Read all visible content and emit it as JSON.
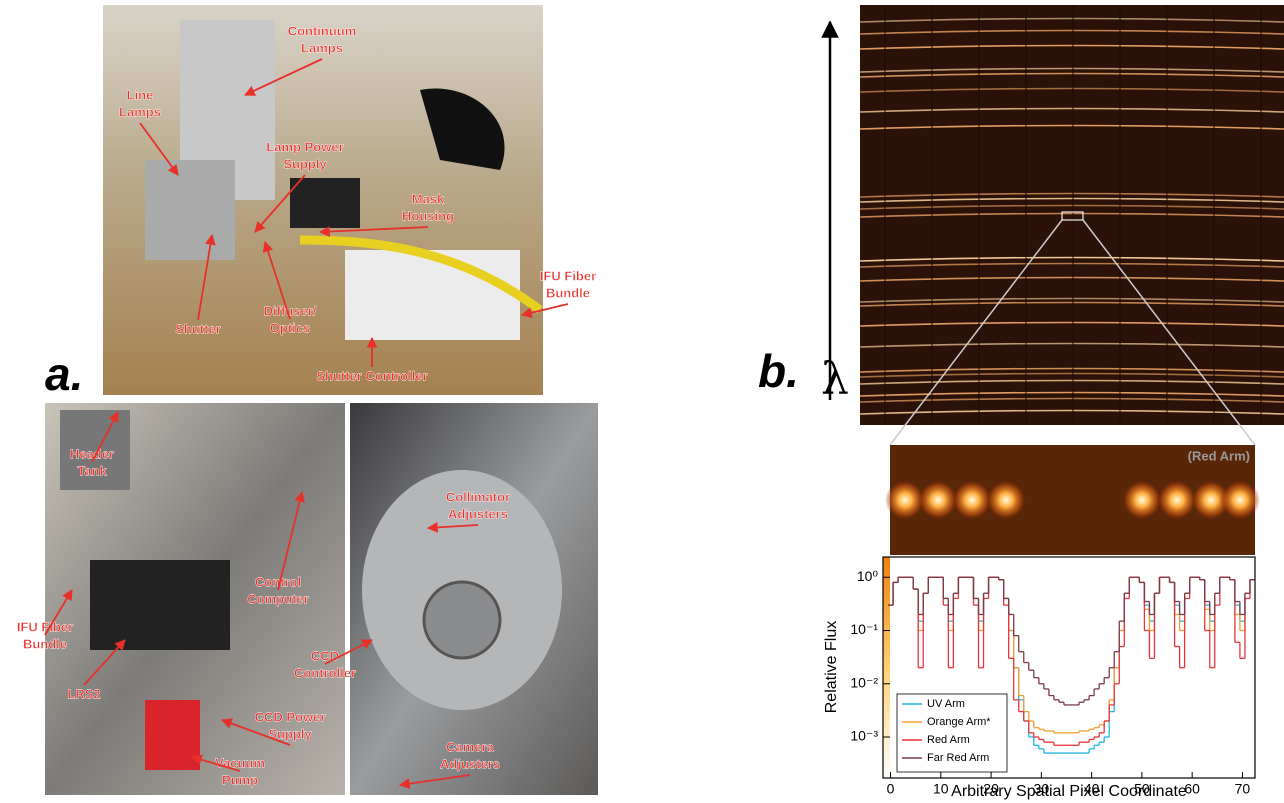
{
  "panel_a": {
    "letter": "a.",
    "photo_top": {
      "labels": [
        {
          "lines": [
            "Continuum",
            "Lamps"
          ]
        },
        {
          "lines": [
            "Line",
            "Lamps"
          ]
        },
        {
          "lines": [
            "Lamp Power",
            "Supply"
          ]
        },
        {
          "lines": [
            "Mask",
            "Housing"
          ]
        },
        {
          "lines": [
            "IFU Fiber",
            "Bundle"
          ]
        },
        {
          "lines": [
            "Shutter"
          ]
        },
        {
          "lines": [
            "Diffuser/",
            "Optics"
          ]
        },
        {
          "lines": [
            "Shutter Controller"
          ]
        }
      ]
    },
    "photo_bottom_left": {
      "labels": [
        {
          "lines": [
            "Header",
            "Tank"
          ]
        },
        {
          "lines": [
            "Control",
            "Computer"
          ]
        },
        {
          "lines": [
            "IFU Fiber",
            "Bundle"
          ]
        },
        {
          "lines": [
            "LRS2"
          ]
        },
        {
          "lines": [
            "CCD Power",
            "Supply"
          ]
        },
        {
          "lines": [
            "Vacuum",
            "Pump"
          ]
        }
      ]
    },
    "photo_bottom_right": {
      "labels": [
        {
          "lines": [
            "Collimator",
            "Adjusters"
          ]
        },
        {
          "lines": [
            "CCD",
            "Controller"
          ]
        },
        {
          "lines": [
            "Camera",
            "Adjusters"
          ]
        }
      ]
    }
  },
  "panel_b": {
    "letter": "b.",
    "axis_symbol": "λ",
    "zoom_label": "(Red Arm)"
  },
  "chart_data": {
    "type": "step",
    "xlabel": "Arbitrary Spatial Pixel Coordinate",
    "ylabel": "Relative Flux",
    "log_y": true,
    "legend": "lower left",
    "xlim": [
      -1.5,
      72.5
    ],
    "ylim": [
      0.00017,
      2.4
    ],
    "xticks": [
      0,
      10,
      20,
      30,
      40,
      50,
      60,
      70
    ],
    "yticks": [
      {
        "value": 0.001,
        "label": "10⁻³"
      },
      {
        "value": 0.01,
        "label": "10⁻²"
      },
      {
        "value": 0.1,
        "label": "10⁻¹"
      },
      {
        "value": 1,
        "label": "10⁰"
      }
    ],
    "x": [
      0,
      1,
      2,
      3,
      4,
      5,
      6,
      7,
      8,
      9,
      10,
      11,
      12,
      13,
      14,
      15,
      16,
      17,
      18,
      19,
      20,
      21,
      22,
      23,
      24,
      25,
      26,
      27,
      28,
      29,
      30,
      31,
      32,
      33,
      34,
      35,
      36,
      37,
      38,
      39,
      40,
      41,
      42,
      43,
      44,
      45,
      46,
      47,
      48,
      49,
      50,
      51,
      52,
      53,
      54,
      55,
      56,
      57,
      58,
      59,
      60,
      61,
      62,
      63,
      64,
      65,
      66,
      67,
      68,
      69,
      70,
      71,
      72
    ],
    "series": [
      {
        "name": "UV Arm",
        "color": "#1fb4e0",
        "values": [
          0.3,
          0.8,
          1,
          1,
          1,
          0.6,
          0.15,
          0.5,
          1,
          1,
          1,
          0.4,
          0.15,
          0.5,
          1,
          1,
          1,
          0.4,
          0.15,
          0.5,
          1,
          1,
          0.9,
          0.4,
          0.1,
          0.02,
          0.005,
          0.002,
          0.001,
          0.0007,
          0.0006,
          0.0005,
          0.0005,
          0.0005,
          0.0005,
          0.0005,
          0.0005,
          0.0005,
          0.0005,
          0.0005,
          0.0006,
          0.0007,
          0.0008,
          0.001,
          0.003,
          0.02,
          0.1,
          0.5,
          1,
          1,
          0.8,
          0.3,
          0.15,
          0.5,
          1,
          1,
          0.8,
          0.3,
          0.15,
          0.5,
          1,
          1,
          0.9,
          0.3,
          0.15,
          0.5,
          1,
          1,
          0.9,
          0.3,
          0.15,
          0.5,
          0.9
        ]
      },
      {
        "name": "Orange Arm*",
        "color": "#f0a030",
        "values": [
          0.3,
          0.8,
          1,
          1,
          1,
          0.6,
          0.1,
          0.5,
          1,
          1,
          1,
          0.4,
          0.1,
          0.5,
          1,
          1,
          1,
          0.4,
          0.1,
          0.5,
          1,
          1,
          0.9,
          0.4,
          0.1,
          0.02,
          0.006,
          0.003,
          0.002,
          0.0015,
          0.0014,
          0.0013,
          0.0013,
          0.0012,
          0.0012,
          0.0012,
          0.0012,
          0.0012,
          0.0013,
          0.0013,
          0.0014,
          0.0015,
          0.0017,
          0.002,
          0.005,
          0.02,
          0.1,
          0.5,
          1,
          1,
          0.8,
          0.25,
          0.1,
          0.5,
          1,
          1,
          0.8,
          0.2,
          0.1,
          0.5,
          1,
          1,
          0.9,
          0.25,
          0.1,
          0.5,
          1,
          1,
          0.9,
          0.2,
          0.1,
          0.5,
          0.9
        ]
      },
      {
        "name": "Red Arm",
        "color": "#e8353a",
        "values": [
          0.3,
          0.8,
          1,
          1,
          1,
          0.6,
          0.02,
          0.5,
          1,
          1,
          1,
          0.3,
          0.02,
          0.4,
          1,
          1,
          1,
          0.3,
          0.02,
          0.4,
          1,
          1,
          0.9,
          0.3,
          0.03,
          0.005,
          0.003,
          0.002,
          0.0012,
          0.001,
          0.0009,
          0.0008,
          0.0008,
          0.0007,
          0.0007,
          0.0007,
          0.0007,
          0.0007,
          0.0008,
          0.0008,
          0.0009,
          0.001,
          0.0012,
          0.002,
          0.004,
          0.01,
          0.05,
          0.4,
          1,
          1,
          0.8,
          0.1,
          0.03,
          0.5,
          1,
          1,
          0.8,
          0.05,
          0.02,
          0.4,
          1,
          1,
          0.9,
          0.1,
          0.02,
          0.3,
          1,
          1,
          0.9,
          0.06,
          0.03,
          0.4,
          0.9
        ]
      },
      {
        "name": "Far Red Arm",
        "color": "#7a3a4a",
        "values": [
          0.3,
          0.8,
          1,
          1,
          1,
          0.6,
          0.2,
          0.5,
          1,
          1,
          1,
          0.4,
          0.2,
          0.5,
          1,
          1,
          1,
          0.4,
          0.2,
          0.5,
          1,
          1,
          0.9,
          0.4,
          0.2,
          0.08,
          0.04,
          0.025,
          0.018,
          0.013,
          0.01,
          0.008,
          0.006,
          0.005,
          0.0045,
          0.004,
          0.004,
          0.004,
          0.0045,
          0.005,
          0.006,
          0.008,
          0.01,
          0.013,
          0.02,
          0.04,
          0.15,
          0.5,
          1,
          1,
          0.8,
          0.35,
          0.2,
          0.5,
          1,
          1,
          0.8,
          0.35,
          0.2,
          0.5,
          1,
          1,
          0.9,
          0.35,
          0.2,
          0.5,
          1,
          1,
          0.9,
          0.35,
          0.2,
          0.5,
          0.9
        ]
      }
    ]
  }
}
